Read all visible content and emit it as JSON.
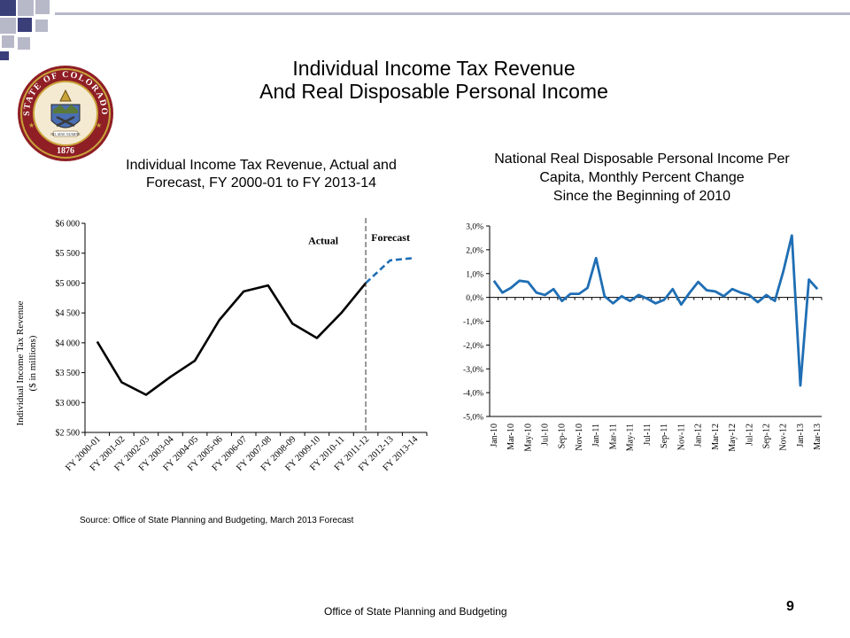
{
  "slide": {
    "title_line1": "Individual Income Tax Revenue",
    "title_line2": "And Real Disposable Personal Income",
    "source_note": "Source: Office of State Planning and Budgeting, March 2013 Forecast",
    "footer": "Office of State Planning and Budgeting",
    "page_number": "9",
    "seal": {
      "text_top": "STATE OF COLORADO",
      "year": "1876",
      "motto": "NIL SINE NUMINE"
    }
  },
  "colors": {
    "deco_navy": "#3a3f7a",
    "deco_gray": "#b7b9c9",
    "line_blue": "#1f6eb4",
    "black": "#000000",
    "seal_red": "#a4262c",
    "seal_gold": "#c9a43a"
  },
  "chart_data": [
    {
      "type": "line",
      "title_line1": "Individual Income Tax Revenue, Actual and",
      "title_line2": "Forecast, FY 2000-01 to FY 2013-14",
      "ylabel_line1": "Individual Income Tax Revenue",
      "ylabel_line2": "($ in millions)",
      "categories": [
        "FY 2000-01",
        "FY 2001-02",
        "FY 2002-03",
        "FY 2003-04",
        "FY 2004-05",
        "FY 2005-06",
        "FY 2006-07",
        "FY 2007-08",
        "FY 2008-09",
        "FY 2009-10",
        "FY 2010-11",
        "FY 2011-12",
        "FY 2012-13",
        "FY 2013-14"
      ],
      "yticks": [
        "$2 500",
        "$3 000",
        "$3 500",
        "$4 000",
        "$4 500",
        "$5 000",
        "$5 500",
        "$6 000"
      ],
      "ylim": [
        2500,
        6000
      ],
      "series": [
        {
          "name": "Actual",
          "values": [
            4020,
            3340,
            3130,
            3430,
            3700,
            4380,
            4860,
            4960,
            4320,
            4080,
            4500,
            5000,
            null,
            null
          ]
        },
        {
          "name": "Forecast",
          "values": [
            null,
            null,
            null,
            null,
            null,
            null,
            null,
            null,
            null,
            null,
            null,
            5000,
            5380,
            5420
          ]
        }
      ],
      "divider_category": "FY 2011-12",
      "labels": {
        "actual": "Actual",
        "forecast": "Forecast"
      },
      "grid": false
    },
    {
      "type": "line",
      "title_line1": "National Real Disposable Personal Income Per",
      "title_line2": "Capita,  Monthly Percent Change",
      "title_line3": "Since the Beginning of 2010",
      "yticks": [
        "3,0%",
        "2,0%",
        "1,0%",
        "0,0%",
        "-1,0%",
        "-2,0%",
        "-3,0%",
        "-4,0%",
        "-5,0%"
      ],
      "ylim": [
        -5.0,
        3.0
      ],
      "xticks": [
        "Jan-10",
        "Mar-10",
        "May-10",
        "Jul-10",
        "Sep-10",
        "Nov-10",
        "Jan-11",
        "Mar-11",
        "May-11",
        "Jul-11",
        "Sep-11",
        "Nov-11",
        "Jan-12",
        "Mar-12",
        "May-12",
        "Jul-12",
        "Sep-12",
        "Nov-12",
        "Jan-13",
        "Mar-13"
      ],
      "x": [
        "Jan-10",
        "Feb-10",
        "Mar-10",
        "Apr-10",
        "May-10",
        "Jun-10",
        "Jul-10",
        "Aug-10",
        "Sep-10",
        "Oct-10",
        "Nov-10",
        "Dec-10",
        "Jan-11",
        "Feb-11",
        "Mar-11",
        "Apr-11",
        "May-11",
        "Jun-11",
        "Jul-11",
        "Aug-11",
        "Sep-11",
        "Oct-11",
        "Nov-11",
        "Dec-11",
        "Jan-12",
        "Feb-12",
        "Mar-12",
        "Apr-12",
        "May-12",
        "Jun-12",
        "Jul-12",
        "Aug-12",
        "Sep-12",
        "Oct-12",
        "Nov-12",
        "Dec-12",
        "Jan-13",
        "Feb-13",
        "Mar-13"
      ],
      "values": [
        0.7,
        0.2,
        0.4,
        0.7,
        0.65,
        0.2,
        0.1,
        0.35,
        -0.15,
        0.15,
        0.15,
        0.4,
        1.65,
        0.05,
        -0.25,
        0.05,
        -0.15,
        0.1,
        -0.05,
        -0.25,
        -0.1,
        0.35,
        -0.3,
        0.2,
        0.65,
        0.3,
        0.25,
        0.05,
        0.35,
        0.2,
        0.1,
        -0.2,
        0.1,
        -0.15,
        1.1,
        2.6,
        -3.7,
        0.75,
        0.35
      ],
      "grid": false
    }
  ]
}
